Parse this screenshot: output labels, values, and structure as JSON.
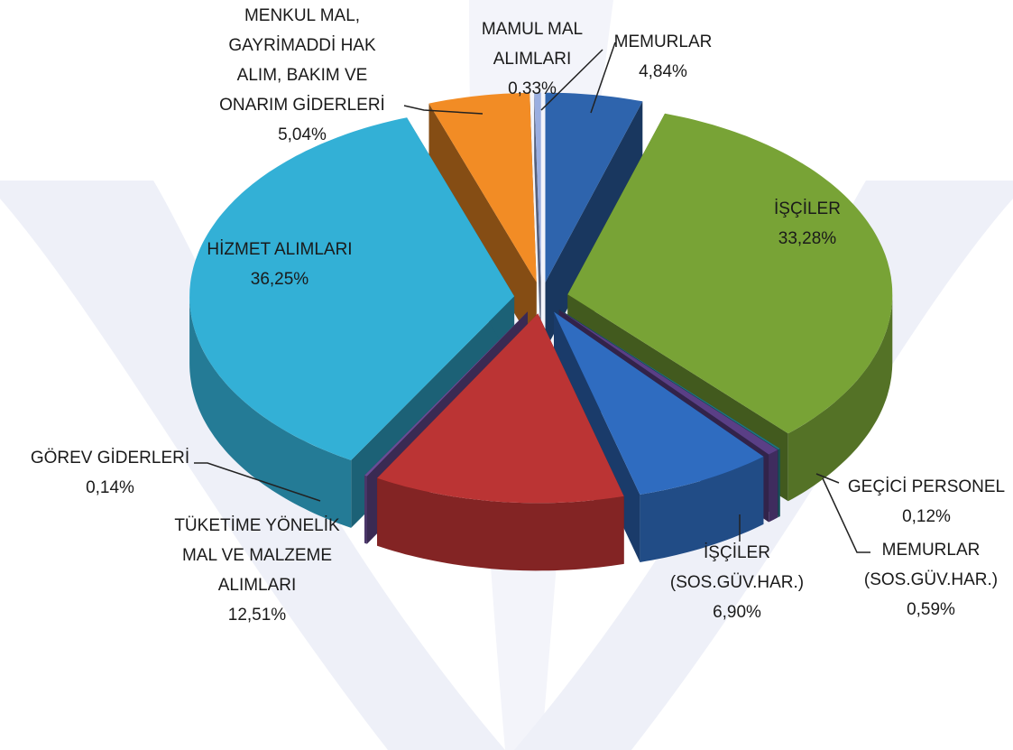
{
  "chart_data": {
    "type": "pie3d",
    "categories": [
      [
        "MEMURLAR"
      ],
      [
        "İŞÇİLER"
      ],
      [
        "GEÇİCİ PERSONEL"
      ],
      [
        "MEMURLAR",
        "(SOS.GÜV.HAR.)"
      ],
      [
        "İŞÇİLER",
        "(SOS.GÜV.HAR.)"
      ],
      [
        "TÜKETİME YÖNELİK",
        "MAL VE MALZEME",
        "ALIMLARI"
      ],
      [
        "GÖREV GİDERLERİ"
      ],
      [
        "HİZMET ALIMLARI"
      ],
      [
        "MENKUL MAL,",
        "GAYRİMADDİ HAK",
        "ALIM, BAKIM VE",
        "ONARIM GİDERLERİ"
      ],
      [
        "MAMUL MAL",
        "ALIMLARI"
      ]
    ],
    "values": [
      4.84,
      33.28,
      0.12,
      0.59,
      6.9,
      12.51,
      0.14,
      36.25,
      5.04,
      0.33
    ],
    "value_labels": [
      "4,84%",
      "33,28%",
      "0,12%",
      "0,59%",
      "6,90%",
      "12,51%",
      "0,14%",
      "36,25%",
      "5,04%",
      "0,33%"
    ],
    "colors": [
      "#2e64ad",
      "#78a336",
      "#1f7380",
      "#5a3f86",
      "#2f6cc0",
      "#bb3434",
      "#6a4d96",
      "#33b0d6",
      "#f28c25",
      "#9aaee0"
    ]
  }
}
